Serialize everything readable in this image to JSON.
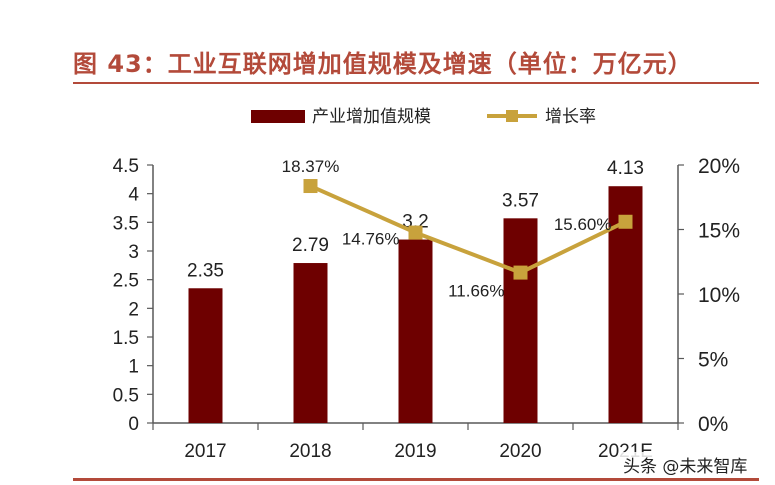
{
  "figure": {
    "title": "图 43：工业互联网增加值规模及增速（单位：万亿元）",
    "watermark": "头条 @未来智库"
  },
  "colors": {
    "bar": "#6e0000",
    "line": "#c8a23c",
    "title": "#b34a3a",
    "axis": "#595959"
  },
  "chart_data": {
    "type": "bar+line",
    "categories": [
      "2017",
      "2018",
      "2019",
      "2020",
      "2021E"
    ],
    "series": [
      {
        "name": "产业增加值规模",
        "type": "bar",
        "axis": "left",
        "values": [
          2.35,
          2.79,
          3.2,
          3.57,
          4.13
        ],
        "labels": [
          "2.35",
          "2.79",
          "3.2",
          "3.57",
          "4.13"
        ]
      },
      {
        "name": "增长率",
        "type": "line",
        "axis": "right",
        "values": [
          null,
          18.37,
          14.76,
          11.66,
          15.6
        ],
        "labels": [
          "",
          "18.37%",
          "14.76%",
          "11.66%",
          "15.60%"
        ]
      }
    ],
    "left_axis": {
      "ylim": [
        0,
        4.5
      ],
      "ticks": [
        "0",
        "0.5",
        "1",
        "1.5",
        "2",
        "2.5",
        "3",
        "3.5",
        "4",
        "4.5"
      ]
    },
    "right_axis": {
      "ylim": [
        0,
        20
      ],
      "ticks": [
        "0%",
        "5%",
        "10%",
        "15%",
        "20%"
      ]
    },
    "legend": {
      "position": "top-center",
      "items": [
        "产业增加值规模",
        "增长率"
      ]
    }
  }
}
